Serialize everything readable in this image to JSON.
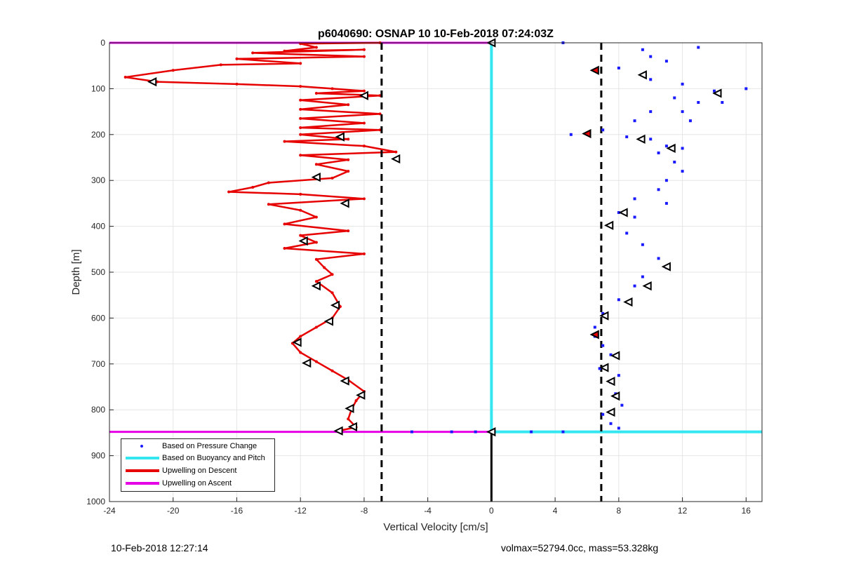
{
  "chart_data": {
    "type": "scatter",
    "title": "p6040690: OSNAP 10 10-Feb-2018 07:24:03Z",
    "xlabel": "Vertical Velocity [cm/s]",
    "ylabel": "Depth [m]",
    "xlim": [
      -24,
      17
    ],
    "ylim": [
      0,
      1000
    ],
    "y_reversed": true,
    "grid": true,
    "xticks": [
      -24,
      -20,
      -16,
      -12,
      -8,
      -4,
      0,
      4,
      8,
      12,
      16
    ],
    "yticks": [
      0,
      100,
      200,
      300,
      400,
      500,
      600,
      700,
      800,
      900,
      1000
    ],
    "legend_position": "bottom-left",
    "colors": {
      "pressure": "#1a1aff",
      "buoyancy": "#33e6f0",
      "descent": "#e60000",
      "ascent": "#e600e6",
      "reference_lines": "#000000"
    },
    "legend": [
      {
        "label": "Based on Pressure Change",
        "color": "#1a1aff",
        "style": "dot"
      },
      {
        "label": "Based on Buoyancy and Pitch",
        "color": "#33e6f0",
        "style": "line"
      },
      {
        "label": "Upwelling on Descent",
        "color": "#e60000",
        "style": "line"
      },
      {
        "label": "Upwelling on Ascent",
        "color": "#e600e6",
        "style": "line"
      }
    ],
    "series": [
      {
        "name": "Upwelling on Descent",
        "type": "line",
        "points": [
          [
            -7,
            0
          ],
          [
            -12,
            2
          ],
          [
            -11,
            10
          ],
          [
            -13,
            18
          ],
          [
            -8,
            15
          ],
          [
            -15,
            22
          ],
          [
            -8,
            30
          ],
          [
            -16,
            35
          ],
          [
            -12,
            45
          ],
          [
            -17,
            48
          ],
          [
            -20,
            60
          ],
          [
            -23,
            75
          ],
          [
            -21,
            85
          ],
          [
            -16,
            90
          ],
          [
            -12,
            95
          ],
          [
            -10,
            100
          ],
          [
            -8,
            105
          ],
          [
            -11,
            110
          ],
          [
            -7,
            115
          ],
          [
            -12,
            125
          ],
          [
            -9,
            135
          ],
          [
            -12,
            145
          ],
          [
            -7,
            155
          ],
          [
            -12,
            165
          ],
          [
            -8,
            175
          ],
          [
            -12,
            185
          ],
          [
            -7,
            190
          ],
          [
            -12,
            200
          ],
          [
            -9,
            210
          ],
          [
            -13,
            215
          ],
          [
            -8,
            225
          ],
          [
            -6,
            238
          ],
          [
            -12,
            245
          ],
          [
            -9,
            255
          ],
          [
            -11,
            265
          ],
          [
            -9,
            280
          ],
          [
            -10,
            295
          ],
          [
            -14,
            305
          ],
          [
            -15,
            315
          ],
          [
            -16.5,
            325
          ],
          [
            -12,
            330
          ],
          [
            -8,
            340
          ],
          [
            -14,
            352
          ],
          [
            -12,
            365
          ],
          [
            -11,
            380
          ],
          [
            -13,
            395
          ],
          [
            -9,
            410
          ],
          [
            -12,
            420
          ],
          [
            -11,
            435
          ],
          [
            -13,
            448
          ],
          [
            -8,
            460
          ],
          [
            -11,
            472
          ],
          [
            -10.5,
            490
          ],
          [
            -10,
            505
          ],
          [
            -11,
            520
          ],
          [
            -10,
            545
          ],
          [
            -9.5,
            575
          ],
          [
            -10,
            600
          ],
          [
            -11,
            620
          ],
          [
            -12,
            640
          ],
          [
            -12.5,
            655
          ],
          [
            -12,
            675
          ],
          [
            -11,
            695
          ],
          [
            -10,
            715
          ],
          [
            -9,
            735
          ],
          [
            -8,
            760
          ],
          [
            -8.5,
            780
          ],
          [
            -8.8,
            800
          ],
          [
            -9,
            820
          ],
          [
            -8.5,
            838
          ],
          [
            -9.5,
            845
          ]
        ]
      },
      {
        "name": "Upwelling on Ascent",
        "type": "line",
        "points": [
          [
            -24,
            0
          ],
          [
            0,
            0
          ],
          [
            -24,
            848
          ],
          [
            0,
            848
          ]
        ]
      },
      {
        "name": "Based on Buoyancy and Pitch",
        "type": "line",
        "points": [
          [
            0,
            0
          ],
          [
            0,
            848
          ],
          [
            17,
            848
          ]
        ]
      },
      {
        "name": "Based on Pressure Change",
        "type": "scatter",
        "points": [
          [
            4.5,
            0
          ],
          [
            9.5,
            15
          ],
          [
            13,
            10
          ],
          [
            10,
            30
          ],
          [
            11,
            40
          ],
          [
            8,
            55
          ],
          [
            6.5,
            60
          ],
          [
            10,
            80
          ],
          [
            12,
            90
          ],
          [
            14,
            105
          ],
          [
            16,
            100
          ],
          [
            11.5,
            120
          ],
          [
            13,
            130
          ],
          [
            14.5,
            130
          ],
          [
            10,
            150
          ],
          [
            12,
            150
          ],
          [
            9,
            170
          ],
          [
            12.5,
            170
          ],
          [
            7,
            190
          ],
          [
            5,
            200
          ],
          [
            8.5,
            205
          ],
          [
            10,
            210
          ],
          [
            11,
            225
          ],
          [
            12,
            230
          ],
          [
            10.5,
            240
          ],
          [
            11.5,
            260
          ],
          [
            12,
            280
          ],
          [
            11,
            300
          ],
          [
            10.5,
            320
          ],
          [
            9,
            340
          ],
          [
            11,
            350
          ],
          [
            8,
            370
          ],
          [
            9,
            380
          ],
          [
            7.5,
            400
          ],
          [
            8.5,
            415
          ],
          [
            9.5,
            440
          ],
          [
            10.5,
            470
          ],
          [
            11,
            490
          ],
          [
            9.5,
            510
          ],
          [
            9,
            530
          ],
          [
            8,
            560
          ],
          [
            7,
            590
          ],
          [
            6.5,
            620
          ],
          [
            6.5,
            640
          ],
          [
            7,
            660
          ],
          [
            7.5,
            680
          ],
          [
            6.8,
            710
          ],
          [
            8,
            725
          ],
          [
            7.5,
            740
          ],
          [
            7.8,
            765
          ],
          [
            8.2,
            790
          ],
          [
            7,
            810
          ],
          [
            7.5,
            830
          ],
          [
            8,
            840
          ],
          [
            2.5,
            848
          ],
          [
            4.5,
            848
          ],
          [
            -5,
            848
          ],
          [
            -2.5,
            848
          ],
          [
            -1,
            848
          ]
        ]
      },
      {
        "name": "Descent reference markers",
        "type": "marker",
        "points": [
          [
            -21.3,
            85
          ],
          [
            -8,
            115
          ],
          [
            -9.5,
            205
          ],
          [
            -6,
            253
          ],
          [
            -11,
            293
          ],
          [
            -9.2,
            350
          ],
          [
            -11.8,
            432
          ],
          [
            -11,
            530
          ],
          [
            -9.8,
            572
          ],
          [
            -10.2,
            607
          ],
          [
            -12.2,
            653
          ],
          [
            -11.6,
            698
          ],
          [
            -9.2,
            737
          ],
          [
            -8.2,
            768
          ],
          [
            -8.9,
            797
          ],
          [
            -8.7,
            837
          ],
          [
            -9.6,
            846
          ],
          [
            0,
            0
          ],
          [
            0,
            848
          ]
        ]
      },
      {
        "name": "Pressure reference markers",
        "type": "marker",
        "points": [
          [
            6.5,
            60
          ],
          [
            9.5,
            70
          ],
          [
            14.2,
            110
          ],
          [
            6,
            198
          ],
          [
            9.4,
            210
          ],
          [
            11.3,
            230
          ],
          [
            8.3,
            370
          ],
          [
            7.4,
            398
          ],
          [
            11,
            488
          ],
          [
            9.8,
            530
          ],
          [
            8.6,
            565
          ],
          [
            7.1,
            595
          ],
          [
            6.5,
            636
          ],
          [
            7.8,
            682
          ],
          [
            7.1,
            708
          ],
          [
            7.5,
            738
          ],
          [
            7.8,
            770
          ],
          [
            7.5,
            805
          ]
        ]
      }
    ],
    "reference_lines": [
      {
        "axis": "x",
        "value": -6.9,
        "style": "dashed"
      },
      {
        "axis": "x",
        "value": 6.9,
        "style": "dashed"
      },
      {
        "axis": "x",
        "value": 0,
        "from": 848,
        "to": 1000,
        "style": "solid"
      }
    ]
  },
  "footer": {
    "timestamp": "10-Feb-2018 12:27:14",
    "info": "volmax=52794.0cc, mass=53.328kg"
  }
}
